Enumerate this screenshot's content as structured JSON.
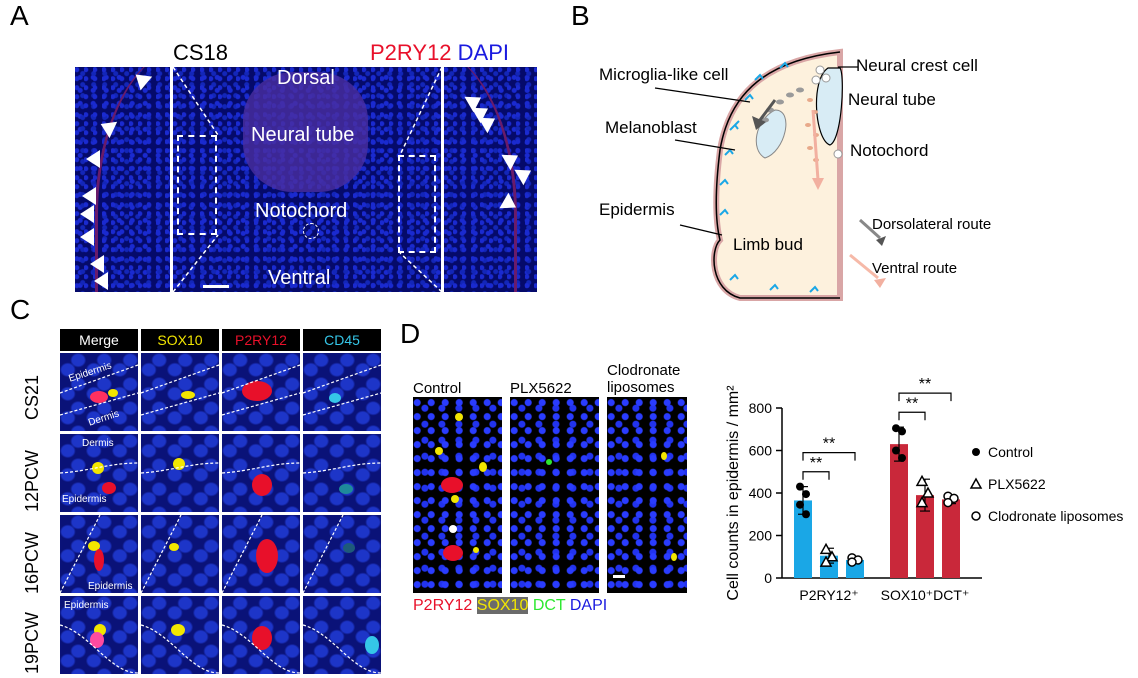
{
  "panels": {
    "a": "A",
    "b": "B",
    "c": "C",
    "d": "D"
  },
  "panel_a": {
    "stage": "CS18",
    "stain_red": "P2RY12",
    "stain_blue": "DAPI",
    "labels": {
      "dorsal": "Dorsal",
      "neural_tube": "Neural tube",
      "notochord": "Notochord",
      "ventral": "Ventral"
    }
  },
  "panel_b": {
    "microglia": "Microglia-like cell",
    "neural_crest": "Neural crest cell",
    "neural_tube": "Neural tube",
    "melanoblast": "Melanoblast",
    "notochord": "Notochord",
    "epidermis": "Epidermis",
    "limb_bud": "Limb bud",
    "dorsolateral": "Dorsolateral route",
    "ventral": "Ventral route"
  },
  "panel_c": {
    "headers": [
      "Merge",
      "SOX10",
      "P2RY12",
      "CD45"
    ],
    "rows": [
      "CS21",
      "12PCW",
      "16PCW",
      "19PCW"
    ],
    "tile_labels": {
      "epidermis": "Epidermis",
      "dermis": "Dermis"
    }
  },
  "panel_d": {
    "conditions": [
      "Control",
      "PLX5622",
      "Clodronate liposomes"
    ],
    "stains": {
      "p2ry12": "P2RY12",
      "sox10": "SOX10",
      "dct": "DCT",
      "dapi": "DAPI"
    },
    "significance": "**"
  },
  "colors": {
    "blue_bar": "#1aa7e6",
    "red_bar": "#c9283a",
    "p2ry12_red": "#e8102a",
    "dapi_blue": "#1a1adf",
    "sox10_yellow": "#f2e600",
    "dct_green": "#2ee830",
    "cd45_cyan": "#35c6e8"
  },
  "chart_data": {
    "type": "bar",
    "ylabel": "Cell counts in epidermis / mm²",
    "ylim": [
      0,
      800
    ],
    "yticks": [
      0,
      200,
      400,
      600,
      800
    ],
    "categories": [
      "P2RY12⁺",
      "SOX10⁺DCT⁺"
    ],
    "series": [
      {
        "name": "Control",
        "marker": "filled-circle",
        "values": [
          365,
          630
        ],
        "errors": [
          65,
          80
        ],
        "points": [
          [
            430,
            395,
            345,
            300
          ],
          [
            705,
            690,
            600,
            565
          ]
        ]
      },
      {
        "name": "PLX5622",
        "marker": "open-triangle",
        "values": [
          105,
          390
        ],
        "errors": [
          35,
          75
        ],
        "points": [
          [
            135,
            100,
            75
          ],
          [
            455,
            400,
            355
          ]
        ]
      },
      {
        "name": "Clodronate liposomes",
        "marker": "open-circle",
        "values": [
          85,
          370
        ],
        "errors": [
          12,
          20
        ],
        "points": [
          [
            95,
            85,
            75
          ],
          [
            385,
            375,
            355
          ]
        ]
      }
    ],
    "comparisons": [
      {
        "category": "P2RY12⁺",
        "pair": [
          "Control",
          "PLX5622"
        ],
        "label": "**"
      },
      {
        "category": "P2RY12⁺",
        "pair": [
          "Control",
          "Clodronate liposomes"
        ],
        "label": "**"
      },
      {
        "category": "SOX10⁺DCT⁺",
        "pair": [
          "Control",
          "PLX5622"
        ],
        "label": "**"
      },
      {
        "category": "SOX10⁺DCT⁺",
        "pair": [
          "Control",
          "Clodronate liposomes"
        ],
        "label": "**"
      }
    ]
  }
}
